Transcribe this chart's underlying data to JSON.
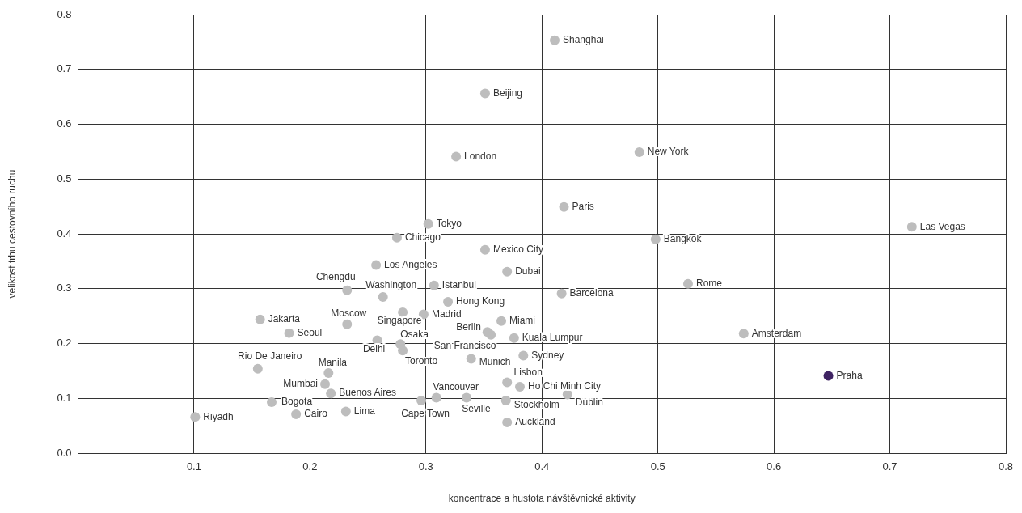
{
  "chart_data": {
    "type": "scatter",
    "xlabel": "koncentrace a hustota návštěvnické aktivity",
    "ylabel": "velikost trhu cestovního ruchu",
    "xlim": [
      0,
      0.8
    ],
    "xticks": [
      0.1,
      0.2,
      0.3,
      0.4,
      0.5,
      0.6,
      0.7,
      0.8
    ],
    "ylim": [
      0,
      0.8
    ],
    "yticks": [
      {
        "value": 0,
        "label": "0.0"
      },
      0.1,
      0.2,
      0.3,
      0.4,
      0.5,
      0.6,
      0.7,
      0.8
    ],
    "grid": true,
    "legend": false,
    "marker": "circle",
    "series": [
      {
        "name": "Shanghai",
        "color": "#bdbdbd",
        "x": [
          0.411
        ],
        "values": [
          0.753
        ]
      },
      {
        "name": "Beijing",
        "color": "#bdbdbd",
        "x": [
          0.351
        ],
        "values": [
          0.656
        ]
      },
      {
        "name": "London",
        "color": "#bdbdbd",
        "x": [
          0.326
        ],
        "values": [
          0.541
        ]
      },
      {
        "name": "New York",
        "color": "#bdbdbd",
        "x": [
          0.484
        ],
        "values": [
          0.549
        ]
      },
      {
        "name": "Paris",
        "color": "#bdbdbd",
        "x": [
          0.419
        ],
        "values": [
          0.449
        ]
      },
      {
        "name": "Tokyo",
        "color": "#bdbdbd",
        "x": [
          0.302
        ],
        "values": [
          0.418
        ]
      },
      {
        "name": "Chicago",
        "color": "#bdbdbd",
        "x": [
          0.275
        ],
        "values": [
          0.393
        ]
      },
      {
        "name": "Mexico City",
        "color": "#bdbdbd",
        "x": [
          0.351
        ],
        "values": [
          0.371
        ]
      },
      {
        "name": "Los Angeles",
        "color": "#bdbdbd",
        "x": [
          0.257
        ],
        "values": [
          0.343
        ]
      },
      {
        "name": "Dubai",
        "color": "#bdbdbd",
        "x": [
          0.37
        ],
        "values": [
          0.331
        ]
      },
      {
        "name": "Las Vegas",
        "color": "#bdbdbd",
        "x": [
          0.719
        ],
        "values": [
          0.413
        ]
      },
      {
        "name": "Bangkok",
        "color": "#bdbdbd",
        "x": [
          0.498
        ],
        "values": [
          0.39
        ]
      },
      {
        "name": "Rome",
        "color": "#bdbdbd",
        "x": [
          0.526
        ],
        "values": [
          0.309
        ]
      },
      {
        "name": "Barcelona",
        "color": "#bdbdbd",
        "x": [
          0.417
        ],
        "values": [
          0.291
        ]
      },
      {
        "name": "Istanbul",
        "color": "#bdbdbd",
        "x": [
          0.307
        ],
        "values": [
          0.306
        ]
      },
      {
        "name": "Chengdu",
        "color": "#bdbdbd",
        "x": [
          0.232
        ],
        "values": [
          0.297
        ]
      },
      {
        "name": "Washington",
        "color": "#bdbdbd",
        "x": [
          0.263
        ],
        "values": [
          0.285
        ]
      },
      {
        "name": "Hong Kong",
        "color": "#bdbdbd",
        "x": [
          0.319
        ],
        "values": [
          0.276
        ]
      },
      {
        "name": "Moscow",
        "color": "#bdbdbd",
        "x": [
          0.232
        ],
        "values": [
          0.235
        ]
      },
      {
        "name": "Singapore",
        "color": "#bdbdbd",
        "x": [
          0.28
        ],
        "values": [
          0.257
        ]
      },
      {
        "name": "Madrid",
        "color": "#bdbdbd",
        "x": [
          0.298
        ],
        "values": [
          0.253
        ]
      },
      {
        "name": "Miami",
        "color": "#bdbdbd",
        "x": [
          0.365
        ],
        "values": [
          0.241
        ]
      },
      {
        "name": "Berlin",
        "color": "#bdbdbd",
        "x": [
          0.353
        ],
        "values": [
          0.221
        ]
      },
      {
        "name": "San Francisco",
        "color": "#bdbdbd",
        "x": [
          0.356
        ],
        "values": [
          0.216
        ]
      },
      {
        "name": "Kuala Lumpur",
        "color": "#bdbdbd",
        "x": [
          0.376
        ],
        "values": [
          0.21
        ]
      },
      {
        "name": "Jakarta",
        "color": "#bdbdbd",
        "x": [
          0.157
        ],
        "values": [
          0.244
        ]
      },
      {
        "name": "Seoul",
        "color": "#bdbdbd",
        "x": [
          0.182
        ],
        "values": [
          0.219
        ]
      },
      {
        "name": "Delhi",
        "color": "#bdbdbd",
        "x": [
          0.258
        ],
        "values": [
          0.206
        ]
      },
      {
        "name": "Osaka",
        "color": "#bdbdbd",
        "x": [
          0.278
        ],
        "values": [
          0.199
        ]
      },
      {
        "name": "Toronto",
        "color": "#bdbdbd",
        "x": [
          0.28
        ],
        "values": [
          0.187
        ]
      },
      {
        "name": "Munich",
        "color": "#bdbdbd",
        "x": [
          0.339
        ],
        "values": [
          0.172
        ]
      },
      {
        "name": "Sydney",
        "color": "#bdbdbd",
        "x": [
          0.384
        ],
        "values": [
          0.178
        ]
      },
      {
        "name": "Rio De Janeiro",
        "color": "#bdbdbd",
        "x": [
          0.155
        ],
        "values": [
          0.154
        ]
      },
      {
        "name": "Manila",
        "color": "#bdbdbd",
        "x": [
          0.216
        ],
        "values": [
          0.146
        ]
      },
      {
        "name": "Mumbai",
        "color": "#bdbdbd",
        "x": [
          0.213
        ],
        "values": [
          0.126
        ]
      },
      {
        "name": "Buenos Aires",
        "color": "#bdbdbd",
        "x": [
          0.218
        ],
        "values": [
          0.109
        ]
      },
      {
        "name": "Lisbon",
        "color": "#bdbdbd",
        "x": [
          0.37
        ],
        "values": [
          0.129
        ]
      },
      {
        "name": "Ho Chi Minh City",
        "color": "#bdbdbd",
        "x": [
          0.381
        ],
        "values": [
          0.121
        ]
      },
      {
        "name": "Dublin",
        "color": "#bdbdbd",
        "x": [
          0.422
        ],
        "values": [
          0.107
        ]
      },
      {
        "name": "Vancouver",
        "color": "#bdbdbd",
        "x": [
          0.309
        ],
        "values": [
          0.101
        ]
      },
      {
        "name": "Cape Town",
        "color": "#bdbdbd",
        "x": [
          0.296
        ],
        "values": [
          0.096
        ]
      },
      {
        "name": "Seville",
        "color": "#bdbdbd",
        "x": [
          0.335
        ],
        "values": [
          0.101
        ]
      },
      {
        "name": "Stockholm",
        "color": "#bdbdbd",
        "x": [
          0.369
        ],
        "values": [
          0.096
        ]
      },
      {
        "name": "Bogota",
        "color": "#bdbdbd",
        "x": [
          0.167
        ],
        "values": [
          0.093
        ]
      },
      {
        "name": "Riyadh",
        "color": "#bdbdbd",
        "x": [
          0.101
        ],
        "values": [
          0.066
        ]
      },
      {
        "name": "Cairo",
        "color": "#bdbdbd",
        "x": [
          0.188
        ],
        "values": [
          0.071
        ]
      },
      {
        "name": "Lima",
        "color": "#bdbdbd",
        "x": [
          0.231
        ],
        "values": [
          0.076
        ]
      },
      {
        "name": "Auckland",
        "color": "#bdbdbd",
        "x": [
          0.37
        ],
        "values": [
          0.056
        ]
      },
      {
        "name": "Amsterdam",
        "color": "#bdbdbd",
        "x": [
          0.574
        ],
        "values": [
          0.218
        ]
      },
      {
        "name": "Praha",
        "color": "#3f2463",
        "x": [
          0.647
        ],
        "values": [
          0.141
        ]
      }
    ]
  }
}
